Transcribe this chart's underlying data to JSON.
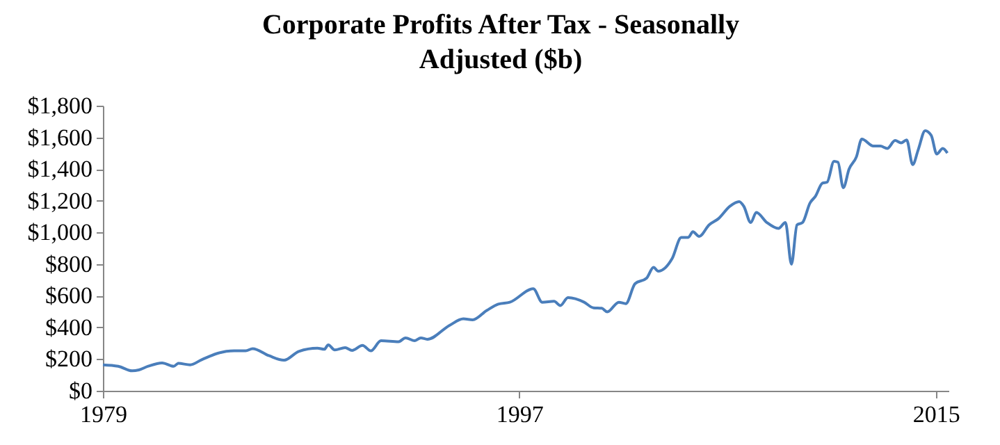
{
  "chart_data": {
    "type": "line",
    "title": "Corporate Profits After Tax - Seasonally Adjusted ($b)",
    "x": [
      1979.0,
      1979.66,
      1980.26,
      1980.56,
      1980.96,
      1981.56,
      1982.06,
      1982.26,
      1982.77,
      1983.27,
      1983.97,
      1984.67,
      1985.17,
      1985.47,
      1986.17,
      1986.83,
      1987.47,
      1988.27,
      1988.57,
      1988.74,
      1989.02,
      1989.47,
      1989.77,
      1990.22,
      1990.58,
      1991.02,
      1991.78,
      1992.08,
      1992.48,
      1992.74,
      1993.02,
      1993.98,
      1994.58,
      1994.98,
      1995.59,
      1996.09,
      1996.59,
      1997.6,
      1997.99,
      1998.5,
      1998.77,
      1999.1,
      1999.8,
      2000.2,
      2000.56,
      2000.8,
      2001.3,
      2001.6,
      2002.0,
      2002.5,
      2002.8,
      2003.0,
      2003.6,
      2004.0,
      2004.3,
      2004.5,
      2004.77,
      2005.2,
      2005.6,
      2006.1,
      2006.5,
      2006.7,
      2007.0,
      2007.24,
      2007.7,
      2008.2,
      2008.5,
      2008.76,
      2009.0,
      2009.24,
      2009.56,
      2009.8,
      2010.1,
      2010.3,
      2010.6,
      2010.77,
      2011.0,
      2011.25,
      2011.57,
      2011.8,
      2012.3,
      2012.6,
      2012.9,
      2013.24,
      2013.5,
      2013.74,
      2014.0,
      2014.24,
      2014.54,
      2014.8,
      2015.04,
      2015.3,
      2015.5
    ],
    "series": [
      {
        "color": "#4a7ebb",
        "values": [
          164,
          155,
          126,
          132,
          155,
          176,
          155,
          173,
          164,
          196,
          237,
          252,
          252,
          266,
          222,
          193,
          249,
          269,
          262,
          290,
          258,
          272,
          255,
          287,
          252,
          316,
          310,
          334,
          316,
          334,
          325,
          413,
          454,
          448,
          507,
          547,
          559,
          644,
          559,
          565,
          538,
          588,
          559,
          524,
          521,
          498,
          559,
          550,
          676,
          711,
          779,
          755,
          834,
          968,
          968,
          1004,
          975,
          1047,
          1086,
          1165,
          1194,
          1165,
          1062,
          1126,
          1062,
          1025,
          1062,
          799,
          1047,
          1062,
          1185,
          1229,
          1311,
          1317,
          1449,
          1443,
          1282,
          1399,
          1478,
          1589,
          1545,
          1545,
          1530,
          1580,
          1565,
          1584,
          1428,
          1522,
          1642,
          1613,
          1495,
          1530,
          1501
        ]
      }
    ],
    "xlim": [
      1979,
      2015.55
    ],
    "xticks": [
      1979,
      1997,
      2015
    ],
    "ylim": [
      0,
      1800
    ],
    "yticks": [
      {
        "value": 0,
        "label": "$0"
      },
      {
        "value": 200,
        "label": "$200"
      },
      {
        "value": 400,
        "label": "$400"
      },
      {
        "value": 600,
        "label": "$600"
      },
      {
        "value": 800,
        "label": "$800"
      },
      {
        "value": 1000,
        "label": "$1,000"
      },
      {
        "value": 1200,
        "label": "$1,200"
      },
      {
        "value": 1400,
        "label": "$1,400"
      },
      {
        "value": 1600,
        "label": "$1,600"
      },
      {
        "value": 1800,
        "label": "$1,800"
      }
    ],
    "grid": false
  }
}
